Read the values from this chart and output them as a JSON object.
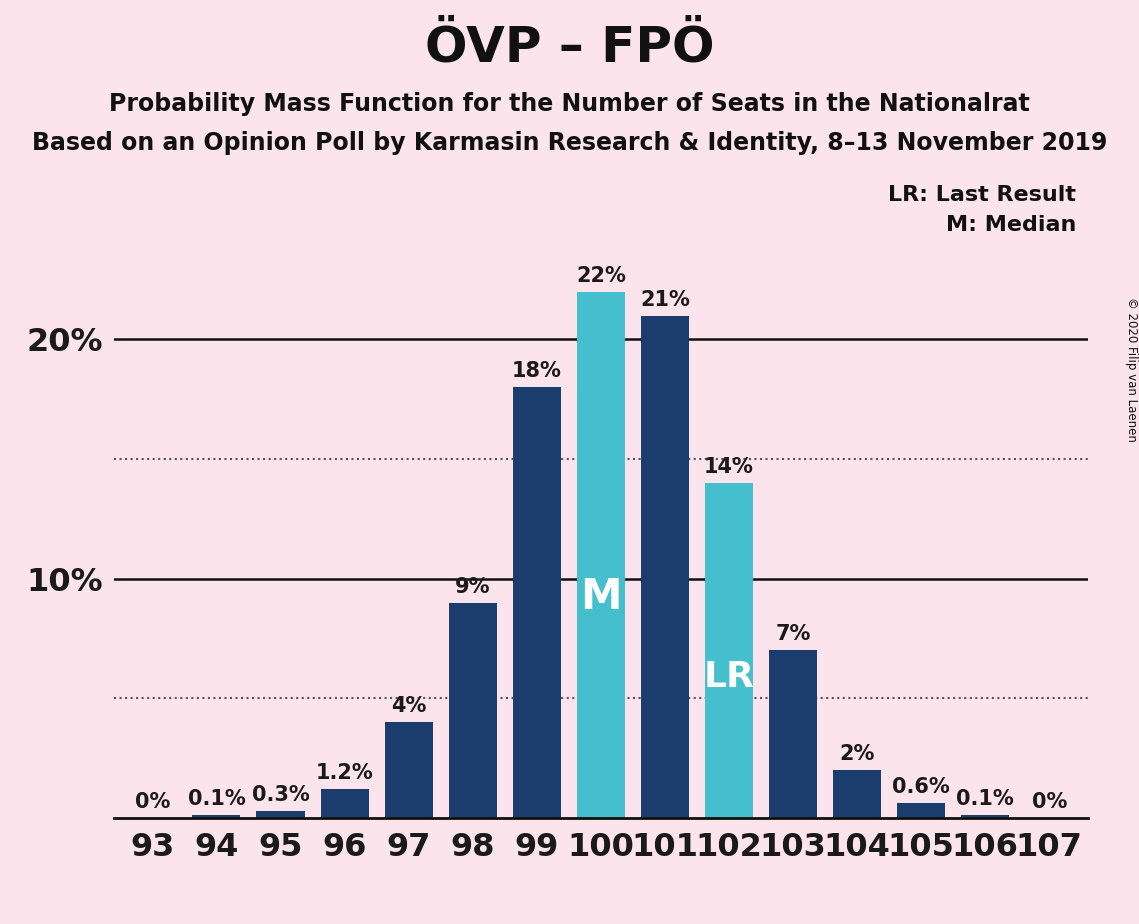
{
  "title": "ÖVP – FPÖ",
  "subtitle1": "Probability Mass Function for the Number of Seats in the Nationalrat",
  "subtitle2": "Based on an Opinion Poll by Karmasin Research & Identity, 8–13 November 2019",
  "copyright": "© 2020 Filip van Laenen",
  "legend_lr": "LR: Last Result",
  "legend_m": "M: Median",
  "seats": [
    93,
    94,
    95,
    96,
    97,
    98,
    99,
    100,
    101,
    102,
    103,
    104,
    105,
    106,
    107
  ],
  "values": [
    0.0,
    0.1,
    0.3,
    1.2,
    4.0,
    9.0,
    18.0,
    22.0,
    21.0,
    14.0,
    7.0,
    2.0,
    0.6,
    0.1,
    0.0
  ],
  "labels": [
    "0%",
    "0.1%",
    "0.3%",
    "1.2%",
    "4%",
    "9%",
    "18%",
    "22%",
    "21%",
    "14%",
    "7%",
    "2%",
    "0.6%",
    "0.1%",
    "0%"
  ],
  "median_seat": 100,
  "lr_seat": 102,
  "color_dark": "#1b3d6e",
  "color_light": "#45bfce",
  "background_color": "#fce4ec",
  "title_fontsize": 36,
  "subtitle_fontsize": 17,
  "label_fontsize": 15,
  "tick_fontsize": 23,
  "dotted_lines": [
    5.0,
    15.0
  ],
  "solid_lines": [
    10.0,
    20.0
  ],
  "ylim": [
    0,
    25.5
  ]
}
